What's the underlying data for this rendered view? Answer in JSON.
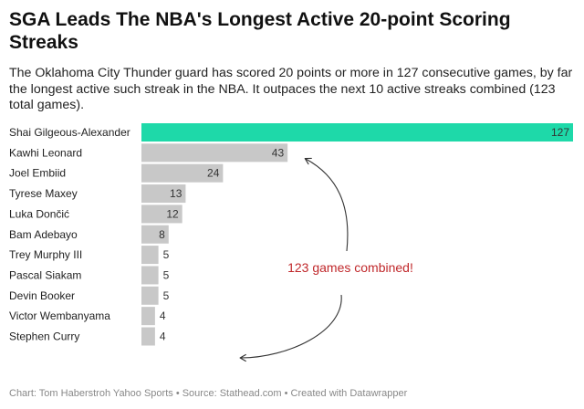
{
  "chart_data": {
    "type": "bar",
    "orientation": "horizontal",
    "title": "SGA Leads The NBA's Longest Active 20-point Scoring Streaks",
    "subtitle": "The Oklahoma City Thunder guard has scored 20 points or more in 127 consecutive games, by far the longest active such streak in the NBA. It outpaces the next 10 active streaks combined (123 total games).",
    "categories": [
      "Shai Gilgeous-Alexander",
      "Kawhi Leonard",
      "Joel Embiid",
      "Tyrese Maxey",
      "Luka Dončić",
      "Bam Adebayo",
      "Trey Murphy III",
      "Pascal Siakam",
      "Devin Booker",
      "Victor Wembanyama",
      "Stephen Curry"
    ],
    "values": [
      127,
      43,
      24,
      13,
      12,
      8,
      5,
      5,
      5,
      4,
      4
    ],
    "xlim": [
      0,
      127
    ],
    "grid": false,
    "annotation": "123 games combined!",
    "footer": "Chart: Tom Haberstroh Yahoo Sports • Source: Stathead.com • Created with Datawrapper"
  },
  "colors": {
    "highlight": "#1ed9a9",
    "bar": "#c8c8c8",
    "annotation": "#c0282b",
    "arrow": "#333333"
  }
}
